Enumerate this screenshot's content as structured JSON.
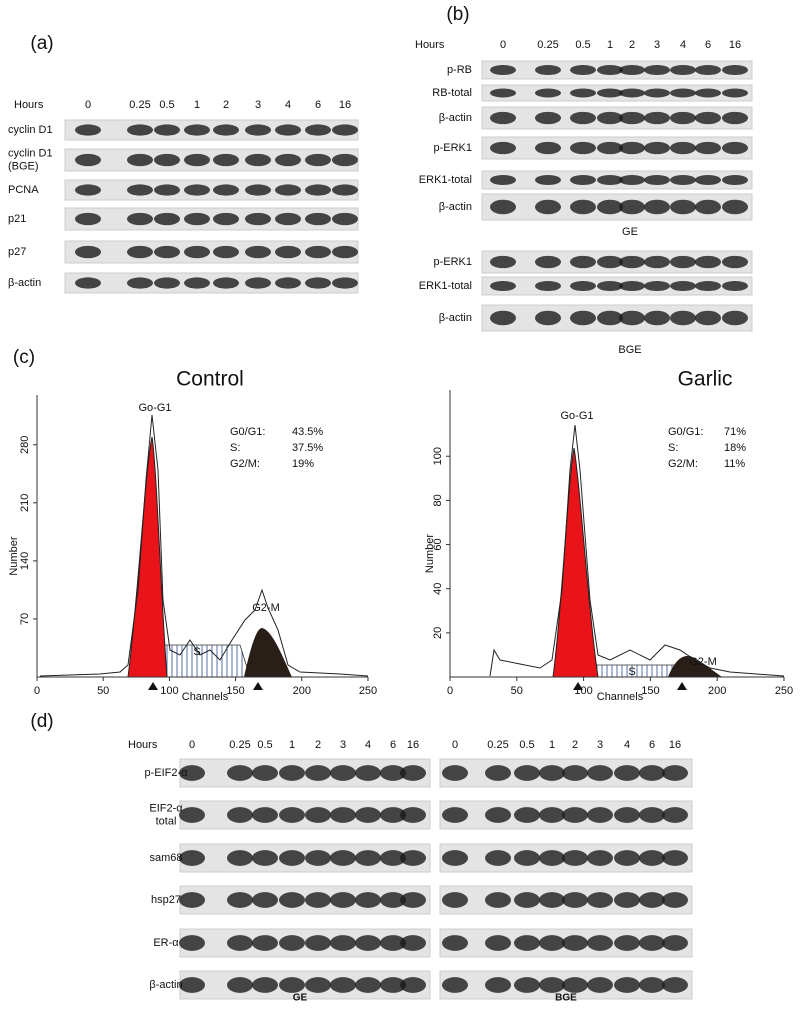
{
  "panel_a": {
    "label": "(a)",
    "hours_label": "Hours",
    "hours": [
      "0",
      "0.25",
      "0.5",
      "1",
      "2",
      "3",
      "4",
      "6",
      "16"
    ],
    "rows": [
      [
        "cyclin D1"
      ],
      [
        "cyclin D1",
        "(BGE)"
      ],
      [
        "PCNA"
      ],
      [
        "p21"
      ],
      [
        "p27"
      ],
      [
        "β-actin"
      ]
    ]
  },
  "panel_b": {
    "label": "(b)",
    "hours_label": "Hours",
    "hours": [
      "0",
      "0.25",
      "0.5",
      "1",
      "2",
      "3",
      "4",
      "6",
      "16"
    ],
    "ge_rows": [
      [
        "p-RB"
      ],
      [
        "RB-total"
      ],
      [
        "β-actin"
      ],
      [
        "p-ERK1"
      ],
      [
        "ERK1-total"
      ],
      [
        "β-actin"
      ]
    ],
    "ge_label": "GE",
    "bge_rows": [
      [
        "p-ERK1"
      ],
      [
        "ERK1-total"
      ],
      [
        "β-actin"
      ]
    ],
    "bge_label": "BGE"
  },
  "panel_c": {
    "label": "(c)",
    "charts": [
      {
        "title": "Control",
        "ylabel": "Number",
        "xlabel": "Channels",
        "xlim": [
          0,
          250
        ],
        "xticks": [
          0,
          50,
          100,
          150,
          200,
          250
        ],
        "ylim": [
          0,
          340
        ],
        "yticks": [
          70,
          140,
          210,
          280
        ],
        "peaks": [
          "Go-G1",
          "S",
          "G2-M"
        ],
        "stats": [
          [
            "G0/G1:",
            "43.5%"
          ],
          [
            "S:",
            "37.5%"
          ],
          [
            "G2/M:",
            "19%"
          ]
        ]
      },
      {
        "title": "Garlic",
        "ylabel": "Number",
        "xlabel": "Channels",
        "xlim": [
          0,
          250
        ],
        "xticks": [
          0,
          50,
          100,
          150,
          200,
          250
        ],
        "ylim": [
          0,
          130
        ],
        "yticks": [
          20,
          40,
          60,
          80,
          100
        ],
        "peaks": [
          "Go-G1",
          "S",
          "G2-M"
        ],
        "stats": [
          [
            "G0/G1:",
            "71%"
          ],
          [
            "S:",
            "18%"
          ],
          [
            "G2/M:",
            "11%"
          ]
        ]
      }
    ]
  },
  "panel_d": {
    "label": "(d)",
    "hours_label": "Hours",
    "ge_hours": [
      "0",
      "0.25",
      "0.5",
      "1",
      "2",
      "3",
      "4",
      "6",
      "16"
    ],
    "bge_hours": [
      "0",
      "0.25",
      "0.5",
      "1",
      "2",
      "3",
      "4",
      "6",
      "16"
    ],
    "rows": [
      [
        "p-EIF2-α"
      ],
      [
        "EIF2-α",
        "total"
      ],
      [
        "sam68"
      ],
      [
        "hsp27"
      ],
      [
        "ER-α"
      ],
      [
        "β-actin"
      ]
    ],
    "ge_label": "GE",
    "bge_label": "BGE"
  }
}
